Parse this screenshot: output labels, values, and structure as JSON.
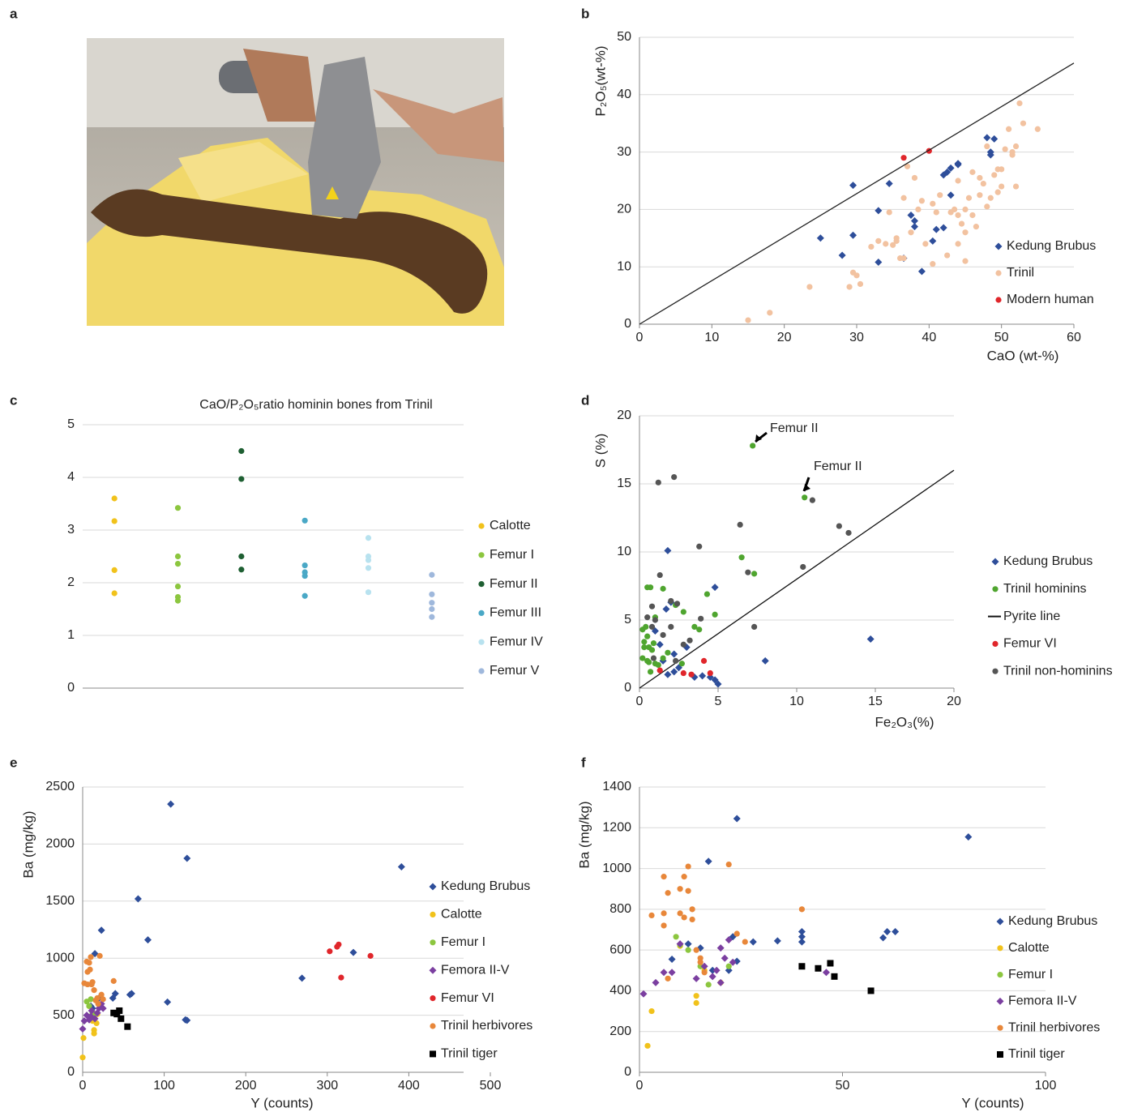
{
  "panel_labels": [
    "a",
    "b",
    "c",
    "d",
    "e",
    "f"
  ],
  "chart_data": [
    {
      "type": "scatter",
      "x_label": "CaO (wt-%)",
      "y_label": "P₂O₅(wt-%)",
      "xlim": [
        0,
        60
      ],
      "ylim": [
        0,
        50
      ],
      "xticks": [
        0,
        10,
        20,
        30,
        40,
        50,
        60
      ],
      "yticks": [
        0,
        10,
        20,
        30,
        40,
        50
      ],
      "grid": true,
      "series": [
        {
          "name": "Kedung Brubus",
          "color": "#2e4e9a",
          "marker": "diamond",
          "x": [
            25,
            28,
            29.5,
            29.5,
            33,
            33,
            34.5,
            36.5,
            37.5,
            38,
            38,
            39,
            40.5,
            41,
            42,
            42,
            42.5,
            43,
            43,
            44,
            44,
            48,
            48.5,
            49,
            48.5
          ],
          "values": [
            15,
            12,
            24.2,
            15.5,
            10.8,
            19.8,
            24.5,
            11.5,
            19,
            17,
            18,
            9.2,
            14.5,
            16.5,
            16.8,
            26,
            26.5,
            27.2,
            22.5,
            28,
            27.8,
            32.5,
            29.5,
            32.3,
            30
          ]
        },
        {
          "name": "Trinil",
          "color": "#f2c2a0",
          "marker": "circle",
          "x": [
            15,
            18,
            23.5,
            29,
            29.5,
            30,
            30.5,
            32,
            33,
            34,
            34.5,
            35,
            35.5,
            35.5,
            36,
            36.5,
            36.5,
            37,
            37.5,
            38,
            38.5,
            39,
            39.5,
            40.5,
            40.5,
            41,
            41.5,
            42.5,
            43,
            43.5,
            44,
            44,
            44,
            44.5,
            45,
            45,
            45,
            45.5,
            46,
            46,
            46.5,
            47,
            47,
            47.5,
            48,
            48,
            48.5,
            49,
            49.5,
            49.5,
            50,
            50,
            50.5,
            51,
            51.5,
            51.5,
            52,
            52,
            52.5,
            53,
            55
          ],
          "values": [
            0.7,
            2,
            6.5,
            6.5,
            9,
            8.5,
            7,
            13.5,
            14.5,
            14,
            19.5,
            13.8,
            15,
            14.5,
            11.5,
            11.5,
            22,
            27.5,
            16,
            25.5,
            20,
            21.5,
            14,
            10.5,
            21,
            19.5,
            22.5,
            12,
            19.5,
            20,
            19,
            25,
            14,
            17.5,
            20,
            11,
            16,
            22,
            26.5,
            19,
            17,
            25.5,
            22.5,
            24.5,
            20.5,
            31,
            22,
            26,
            23,
            27,
            27,
            24,
            30.5,
            34,
            29.5,
            30,
            31,
            24,
            38.5,
            35,
            34
          ]
        },
        {
          "name": "Modern human",
          "color": "#e0262b",
          "marker": "circle",
          "x": [
            36.5,
            40
          ],
          "values": [
            29,
            30.2
          ]
        },
        {
          "color": "#222222",
          "marker": "line",
          "x": [
            0,
            60
          ],
          "values": [
            0,
            45.5
          ]
        }
      ]
    },
    {
      "type": "strip",
      "title": "CaO/P₂O₅ratio hominin bones from Trinil",
      "ylim": [
        0,
        5
      ],
      "yticks": [
        0,
        1,
        2,
        3,
        4,
        5
      ],
      "grid": true,
      "series": [
        {
          "name": "Calotte",
          "color": "#f1c21b",
          "values": [
            3.6,
            3.17,
            2.24,
            1.8
          ]
        },
        {
          "name": "Femur I",
          "color": "#8cc63f",
          "values": [
            3.42,
            2.5,
            2.36,
            1.93,
            1.73,
            1.66
          ]
        },
        {
          "name": "Femur II",
          "color": "#1e5f32",
          "values": [
            4.5,
            3.97,
            2.5,
            2.25
          ]
        },
        {
          "name": "Femur III",
          "color": "#4aa8c6",
          "values": [
            3.18,
            2.33,
            2.2,
            2.13,
            1.75
          ]
        },
        {
          "name": "Femur IV",
          "color": "#b8e2ef",
          "values": [
            2.85,
            2.5,
            2.43,
            2.28,
            1.82
          ]
        },
        {
          "name": "Femur V",
          "color": "#9fb8dc",
          "values": [
            2.15,
            1.78,
            1.62,
            1.5,
            1.35
          ]
        }
      ]
    },
    {
      "type": "scatter",
      "x_label": "Fe₂O₃(%)",
      "y_label": "S (%)",
      "xlim": [
        0,
        20
      ],
      "ylim": [
        0,
        20
      ],
      "xticks": [
        0,
        5,
        10,
        15,
        20
      ],
      "yticks": [
        0,
        5,
        10,
        15,
        20
      ],
      "grid": true,
      "annotations": [
        "Femur II",
        "Femur II"
      ],
      "series": [
        {
          "name": "Kedung Brubus",
          "color": "#2e4e9a",
          "marker": "diamond",
          "x": [
            1.8,
            1.7,
            2,
            4.8,
            8,
            14.7,
            1.3,
            1.5,
            2.2,
            3,
            1.8,
            2.2,
            3.5,
            4.5,
            4.8,
            5,
            1,
            2.5,
            4
          ],
          "values": [
            10.1,
            5.8,
            6.3,
            7.4,
            2,
            3.6,
            3.2,
            2,
            2.5,
            3,
            1,
            1.2,
            0.8,
            0.8,
            0.6,
            0.3,
            4.2,
            1.5,
            0.9
          ]
        },
        {
          "name": "Trinil hominins",
          "color": "#4fa52f",
          "marker": "circle",
          "x": [
            7.2,
            10.5,
            6.5,
            7.3,
            4.3,
            4.8,
            0.5,
            0.7,
            1.5,
            2.3,
            2.8,
            3.5,
            3.8,
            0.2,
            0.4,
            0.5,
            0.3,
            0.6,
            0.8,
            0.2,
            0.5,
            1,
            1.5,
            1.8,
            0.7,
            1.2,
            0.3,
            0.9,
            2.7,
            1,
            0.6
          ],
          "values": [
            17.8,
            14,
            9.6,
            8.4,
            6.9,
            5.4,
            7.4,
            7.4,
            7.3,
            6.1,
            5.6,
            4.5,
            4.3,
            4.3,
            4.5,
            3.8,
            3.4,
            3,
            2.8,
            2.2,
            2,
            1.8,
            2.2,
            2.6,
            1.2,
            1.7,
            3,
            3.3,
            1.8,
            5.2,
            1.9
          ]
        },
        {
          "name": "Pyrite line",
          "color": "#111111",
          "marker": "line",
          "x": [
            0,
            20
          ],
          "values": [
            0,
            16
          ]
        },
        {
          "name": "Femur VI",
          "color": "#e0262b",
          "marker": "circle",
          "x": [
            1.3,
            2.8,
            3.3,
            4.1,
            4.5
          ],
          "values": [
            1.3,
            1.1,
            1,
            2,
            1.1
          ]
        },
        {
          "name": "Trinil non-hominins",
          "color": "#555555",
          "marker": "circle",
          "x": [
            1.2,
            2.2,
            11,
            6.4,
            12.7,
            13.3,
            3.8,
            1.3,
            6.9,
            10.4,
            2,
            2.4,
            0.8,
            1,
            0.5,
            7.3,
            2,
            1.5,
            0.8,
            3.2,
            2.8,
            2.3,
            0.9,
            3.9
          ],
          "values": [
            15.1,
            15.5,
            13.8,
            12,
            11.9,
            11.4,
            10.4,
            8.3,
            8.5,
            8.9,
            6.4,
            6.2,
            6,
            5,
            5.2,
            4.5,
            4.5,
            3.9,
            4.5,
            3.5,
            3.2,
            2,
            2.2,
            5.1
          ]
        }
      ]
    },
    {
      "type": "scatter",
      "x_label": "Y (counts)",
      "y_label": "Ba (mg/kg)",
      "xlim": [
        0,
        500
      ],
      "ylim": [
        0,
        2500
      ],
      "xticks": [
        0,
        100,
        200,
        300,
        400,
        500
      ],
      "yticks": [
        0,
        500,
        1000,
        1500,
        2000,
        2500
      ],
      "grid": true,
      "series": [
        {
          "name": "Kedung Brubus",
          "color": "#2e4e9a",
          "marker": "diamond",
          "x": [
            108,
            128,
            68,
            80,
            23,
            15,
            60,
            58,
            40,
            37,
            104,
            128,
            126,
            391,
            269,
            332,
            10,
            12,
            20
          ],
          "values": [
            2350,
            1875,
            1520,
            1160,
            1245,
            1040,
            690,
            680,
            690,
            650,
            615,
            455,
            460,
            1800,
            825,
            1050,
            580,
            560,
            650
          ]
        },
        {
          "name": "Calotte",
          "color": "#f1c21b",
          "marker": "circle",
          "x": [
            0,
            1,
            14,
            14,
            17,
            18,
            8,
            12
          ],
          "values": [
            130,
            300,
            370,
            340,
            430,
            510,
            580,
            450
          ]
        },
        {
          "name": "Femur I",
          "color": "#8cc63f",
          "marker": "circle",
          "x": [
            5,
            10,
            12,
            8,
            15
          ],
          "values": [
            620,
            640,
            520,
            580,
            510
          ]
        },
        {
          "name": "Femora II-V",
          "color": "#7b3fa0",
          "marker": "diamond",
          "x": [
            0,
            2,
            5,
            8,
            11,
            15,
            18,
            20,
            23,
            25,
            10
          ],
          "values": [
            380,
            450,
            500,
            460,
            540,
            470,
            520,
            560,
            600,
            560,
            490
          ]
        },
        {
          "name": "Femur VI",
          "color": "#e0262b",
          "marker": "circle",
          "x": [
            303,
            312,
            314,
            317,
            353
          ],
          "values": [
            1060,
            1100,
            1120,
            830,
            1020
          ]
        },
        {
          "name": "Trinil herbivores",
          "color": "#e8873a",
          "marker": "circle",
          "x": [
            2,
            5,
            6,
            8,
            10,
            12,
            14,
            6,
            9,
            11,
            18,
            21,
            23,
            25,
            38,
            16,
            19
          ],
          "values": [
            780,
            970,
            880,
            960,
            1010,
            790,
            720,
            770,
            900,
            770,
            650,
            1020,
            680,
            640,
            800,
            630,
            600
          ]
        },
        {
          "name": "Trinil tiger",
          "color": "#000000",
          "marker": "square",
          "x": [
            38,
            45,
            42,
            47,
            55
          ],
          "values": [
            520,
            540,
            510,
            470,
            400
          ]
        }
      ]
    },
    {
      "type": "scatter",
      "x_label": "Y (counts)",
      "y_label": "Ba (mg/kg)",
      "xlim": [
        0,
        100
      ],
      "ylim": [
        0,
        1400
      ],
      "xticks": [
        0,
        50,
        100
      ],
      "yticks": [
        0,
        200,
        400,
        600,
        800,
        1000,
        1200,
        1400
      ],
      "grid": true,
      "series": [
        {
          "name": "Kedung Brubus",
          "color": "#2e4e9a",
          "marker": "diamond",
          "x": [
            24,
            17,
            81,
            40,
            40,
            40,
            34,
            28,
            23,
            12,
            15,
            60,
            61,
            63,
            8,
            24,
            18,
            22
          ],
          "values": [
            1245,
            1035,
            1155,
            690,
            665,
            640,
            645,
            640,
            665,
            630,
            610,
            660,
            690,
            690,
            555,
            545,
            500,
            500
          ]
        },
        {
          "name": "Calotte",
          "color": "#f1c21b",
          "marker": "circle",
          "x": [
            2,
            3,
            14,
            14,
            20,
            10,
            16
          ],
          "values": [
            130,
            300,
            375,
            340,
            440,
            620,
            500
          ]
        },
        {
          "name": "Femur I",
          "color": "#8cc63f",
          "marker": "circle",
          "x": [
            9,
            10,
            12,
            17,
            15,
            22
          ],
          "values": [
            665,
            625,
            600,
            430,
            520,
            520
          ]
        },
        {
          "name": "Femora II-V",
          "color": "#7b3fa0",
          "marker": "diamond",
          "x": [
            1,
            4,
            6,
            8,
            10,
            14,
            16,
            18,
            19,
            20,
            21,
            22,
            23,
            46,
            20
          ],
          "values": [
            385,
            440,
            490,
            490,
            630,
            460,
            520,
            470,
            500,
            610,
            560,
            650,
            540,
            490,
            440
          ]
        },
        {
          "name": "Trinil herbivores",
          "color": "#e8873a",
          "marker": "circle",
          "x": [
            3,
            6,
            6,
            6,
            7,
            10,
            11,
            11,
            12,
            12,
            13,
            13,
            10,
            7,
            14,
            15,
            16,
            22,
            24,
            26,
            40,
            15
          ],
          "values": [
            770,
            720,
            960,
            780,
            880,
            900,
            960,
            760,
            890,
            1010,
            800,
            750,
            780,
            460,
            600,
            560,
            490,
            1020,
            680,
            640,
            800,
            540
          ]
        },
        {
          "name": "Trinil tiger",
          "color": "#000000",
          "marker": "square",
          "x": [
            40,
            44,
            47,
            48,
            57
          ],
          "values": [
            520,
            510,
            535,
            470,
            400
          ]
        }
      ]
    }
  ]
}
